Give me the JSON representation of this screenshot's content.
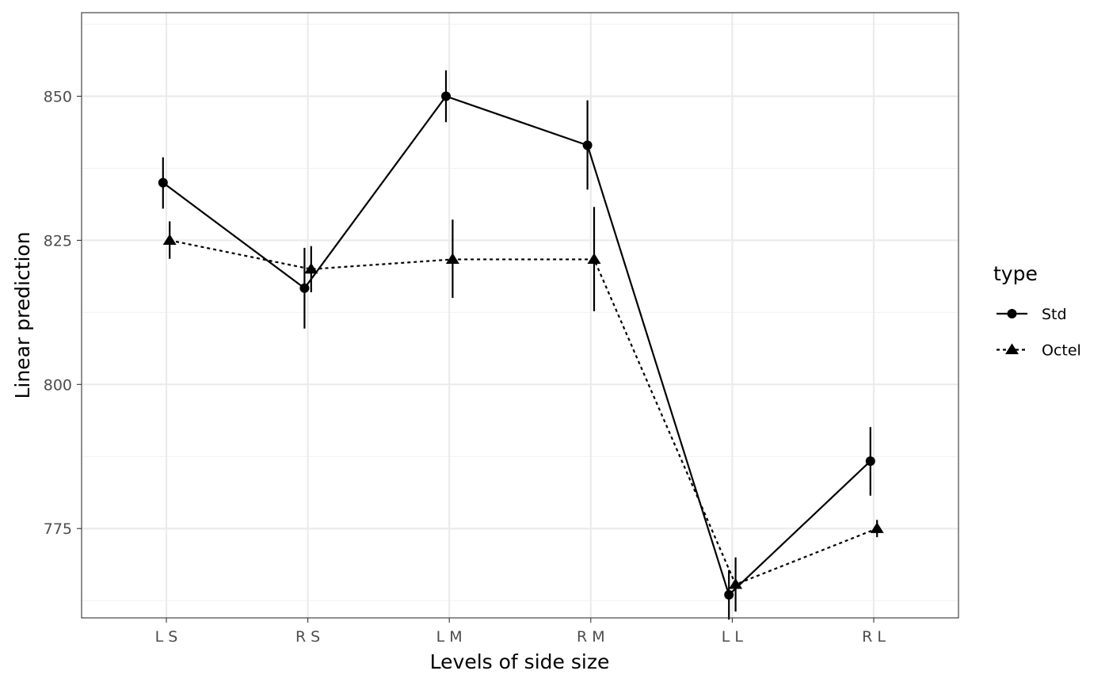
{
  "chart_data": {
    "type": "line",
    "xlabel": "Levels of side size",
    "ylabel": "Linear prediction",
    "categories": [
      "L S",
      "R S",
      "L M",
      "R M",
      "L L",
      "R L"
    ],
    "yticks": [
      775,
      800,
      825,
      850
    ],
    "ylim": [
      759.5,
      864.5
    ],
    "grid": true,
    "legend": {
      "title": "type",
      "position": "right"
    },
    "series": [
      {
        "name": "Std",
        "marker": "circle",
        "line": "solid",
        "color": "#000000",
        "values": [
          835,
          816.7,
          850,
          841.5,
          763.5,
          786.7
        ],
        "ci_low": [
          830.5,
          809.7,
          845.5,
          833.8,
          759.2,
          780.7
        ],
        "ci_high": [
          839.4,
          823.7,
          854.5,
          849.3,
          767.8,
          792.6
        ]
      },
      {
        "name": "Octel",
        "marker": "triangle",
        "line": "dotted",
        "color": "#000000",
        "values": [
          825,
          820,
          821.7,
          821.7,
          765.3,
          775
        ],
        "ci_low": [
          821.8,
          816,
          815,
          812.7,
          760.6,
          773.5
        ],
        "ci_high": [
          828.3,
          824,
          828.6,
          830.8,
          770,
          776.5
        ]
      }
    ]
  }
}
